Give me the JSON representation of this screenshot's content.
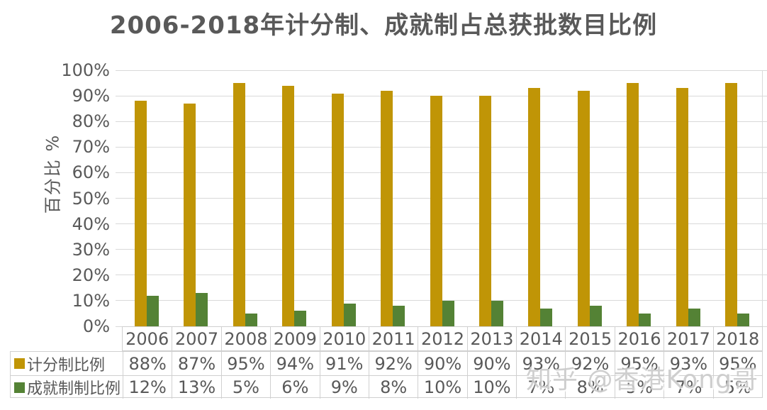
{
  "chart": {
    "title": "2006-2018年计分制、成就制占总获批数目比例",
    "y_axis_title": "百分比 %",
    "colors": {
      "points_gold": "#C09506",
      "achievement_green": "#548235",
      "gridline": "#d9d9d9",
      "text": "#595959",
      "table_border": "#d0d0d0"
    }
  },
  "watermark": {
    "text": "知乎 @香港Kong哥"
  },
  "chart_data": {
    "type": "bar",
    "title": "2006-2018年计分制、成就制占总获批数目比例",
    "xlabel": "",
    "ylabel": "百分比 %",
    "ylim": [
      0,
      100
    ],
    "y_ticks": [
      "0%",
      "10%",
      "20%",
      "30%",
      "40%",
      "50%",
      "60%",
      "70%",
      "80%",
      "90%",
      "100%"
    ],
    "grid": true,
    "legend_position": "table-left",
    "categories": [
      "2006",
      "2007",
      "2008",
      "2009",
      "2010",
      "2011",
      "2012",
      "2013",
      "2014",
      "2015",
      "2016",
      "2017",
      "2018"
    ],
    "series": [
      {
        "name": "计分制比例",
        "color": "#C09506",
        "values": [
          88,
          87,
          95,
          94,
          91,
          92,
          90,
          90,
          93,
          92,
          95,
          93,
          95
        ],
        "labels": [
          "88%",
          "87%",
          "95%",
          "94%",
          "91%",
          "92%",
          "90%",
          "90%",
          "93%",
          "92%",
          "95%",
          "93%",
          "95%"
        ]
      },
      {
        "name": "成就制制比例",
        "color": "#548235",
        "values": [
          12,
          13,
          5,
          6,
          9,
          8,
          10,
          10,
          7,
          8,
          5,
          7,
          5
        ],
        "labels": [
          "12%",
          "13%",
          "5%",
          "6%",
          "9%",
          "8%",
          "10%",
          "10%",
          "7%",
          "8%",
          "5%",
          "7%",
          "5%"
        ]
      }
    ]
  }
}
